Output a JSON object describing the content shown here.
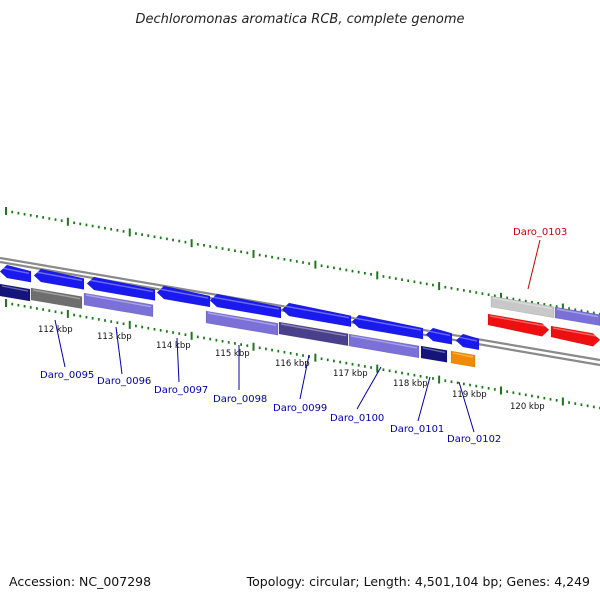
{
  "title": "Dechloromonas aromatica RCB, complete genome",
  "footer": {
    "accession": "Accession: NC_007298",
    "summary": "Topology: circular; Length: 4,501,104 bp; Genes: 4,249"
  },
  "colors": {
    "backbone": "#8a8a8a",
    "tick": "#1a7a1a",
    "label_default": "#0000aa",
    "label_highlight": "#cc0000",
    "forward_gene": "#1a1aee",
    "reverse_gene_light": "#7a70d8",
    "reverse_gene_dark": "#4a3f8a",
    "navy_gene": "#14147a",
    "gray_gene": "#6e6e6e",
    "light_gray_gene": "#c8c8c8",
    "orange_gene": "#f08a00",
    "red_gene": "#ee1010"
  },
  "ruler_ticks": [
    {
      "kbp": 112,
      "label": "112 kbp"
    },
    {
      "kbp": 113,
      "label": "113 kbp"
    },
    {
      "kbp": 114,
      "label": "114 kbp"
    },
    {
      "kbp": 115,
      "label": "115 kbp"
    },
    {
      "kbp": 116,
      "label": "116 kbp"
    },
    {
      "kbp": 117,
      "label": "117 kbp"
    },
    {
      "kbp": 118,
      "label": "118 kbp"
    },
    {
      "kbp": 119,
      "label": "119 kbp"
    },
    {
      "kbp": 120,
      "label": "120 kbp"
    }
  ],
  "gene_labels": [
    {
      "id": "Daro_0095",
      "color": "default"
    },
    {
      "id": "Daro_0096",
      "color": "default"
    },
    {
      "id": "Daro_0097",
      "color": "default"
    },
    {
      "id": "Daro_0098",
      "color": "default"
    },
    {
      "id": "Daro_0099",
      "color": "default"
    },
    {
      "id": "Daro_0100",
      "color": "default"
    },
    {
      "id": "Daro_0101",
      "color": "default"
    },
    {
      "id": "Daro_0102",
      "color": "default"
    },
    {
      "id": "Daro_0103",
      "color": "highlight"
    }
  ]
}
